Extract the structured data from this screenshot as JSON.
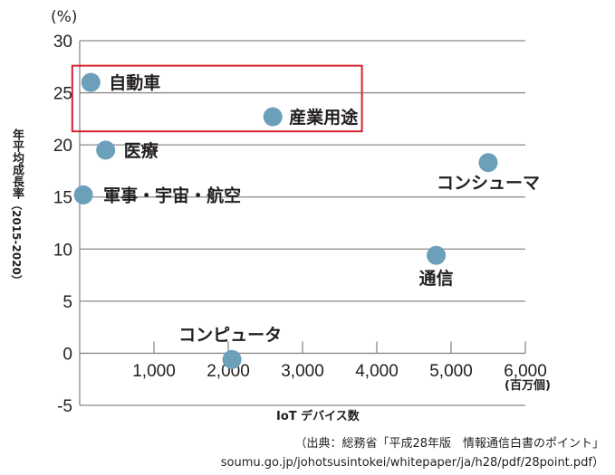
{
  "chart_data": {
    "type": "scatter",
    "ylabel_main": "年平均成長率",
    "ylabel_sub": "（2015-2020）",
    "xlabel": "IoT デバイス数",
    "yunit": "(%)",
    "xunit": "(百万個)",
    "xlim": [
      0,
      6000
    ],
    "ylim": [
      -5,
      30
    ],
    "xticks": [
      1000,
      2000,
      3000,
      4000,
      5000,
      6000
    ],
    "xtick_labels": [
      "1,000",
      "2,000",
      "3,000",
      "4,000",
      "5,000",
      "6,000"
    ],
    "yticks": [
      -5,
      0,
      5,
      10,
      15,
      20,
      25,
      30
    ],
    "ytick_labels": [
      "-5",
      "0",
      "5",
      "10",
      "15",
      "20",
      "25",
      "30"
    ],
    "grid": true,
    "point_color": "#6b9fba",
    "highlight_color": "#d8202f",
    "points": [
      {
        "label": "自動車",
        "x": 150,
        "y": 26.0
      },
      {
        "label": "産業用途",
        "x": 2600,
        "y": 22.7
      },
      {
        "label": "医療",
        "x": 350,
        "y": 19.5
      },
      {
        "label": "軍事・宇宙・航空",
        "x": 50,
        "y": 15.2
      },
      {
        "label": "コンシューマ",
        "x": 5500,
        "y": 18.3
      },
      {
        "label": "通信",
        "x": 4800,
        "y": 9.4
      },
      {
        "label": "コンピュータ",
        "x": 2050,
        "y": -0.6
      }
    ],
    "highlight": {
      "x": [
        -100,
        3800
      ],
      "y": [
        21.3,
        27.6
      ]
    }
  },
  "source": {
    "line1": "（出典：総務省「平成28年版　情報通信白書のポイント」",
    "line2": "soumu.go.jp/johotsusintokei/whitepaper/ja/h28/pdf/28point.pdf）"
  }
}
